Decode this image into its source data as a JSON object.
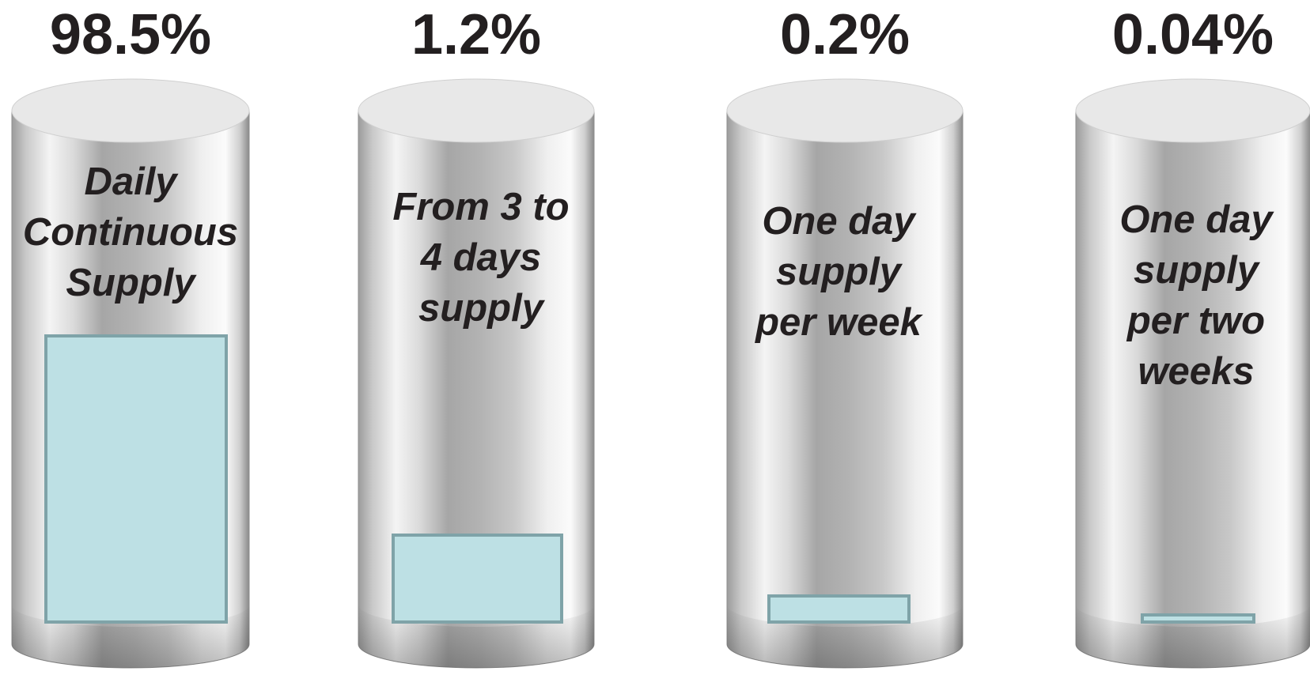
{
  "chart_data": {
    "type": "bar",
    "style": "3d-cylinder-fill",
    "title": "",
    "xlabel": "",
    "ylabel": "",
    "categories": [
      [
        "Daily",
        "Continuous",
        "Supply"
      ],
      [
        "From 3 to",
        "4 days",
        "supply"
      ],
      [
        "One day",
        "supply",
        "per week"
      ],
      [
        "One day",
        "supply",
        "per two",
        "weeks"
      ]
    ],
    "values": [
      98.5,
      1.2,
      0.2,
      0.04
    ],
    "data_labels": [
      "98.5%",
      "1.2%",
      "0.2%",
      "0.04%"
    ],
    "unit": "%",
    "ylim": [
      0,
      100
    ],
    "colors": {
      "fill": "#bde0e4",
      "fill_stroke": "#7fa3a8",
      "cylinder_light": "#f7f7f7",
      "cylinder_dark": "#9a9a9a",
      "cylinder_top": "#e8e8e8",
      "text": "#231f20"
    }
  }
}
